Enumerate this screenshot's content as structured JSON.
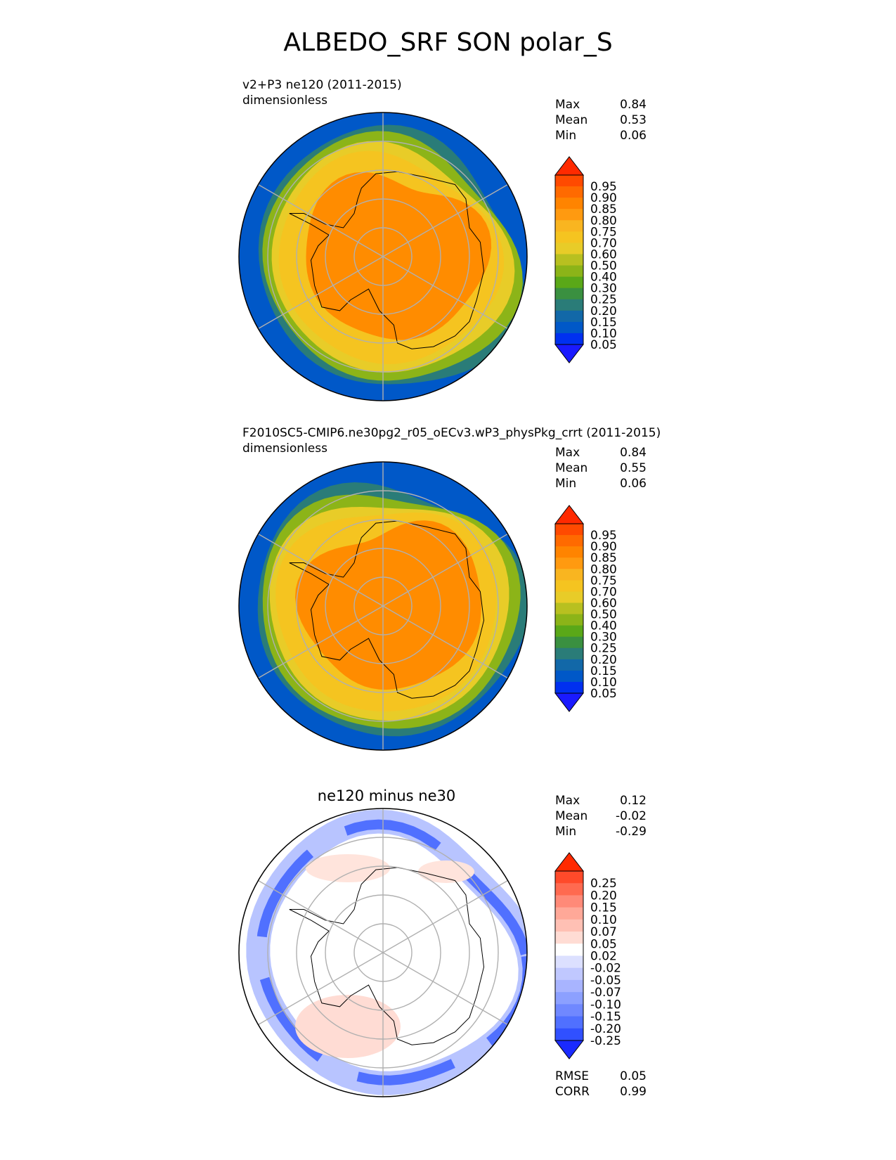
{
  "figure": {
    "title": "ALBEDO_SRF SON polar_S"
  },
  "panels": [
    {
      "title_line1": "v2+P3 ne120 (2011-2015)",
      "title_line2": "dimensionless",
      "stats": [
        {
          "label": "Max",
          "value": "0.84"
        },
        {
          "label": "Mean",
          "value": "0.53"
        },
        {
          "label": "Min",
          "value": "0.06"
        }
      ]
    },
    {
      "title_line1": "F2010SC5-CMIP6.ne30pg2_r05_oECv3.wP3_physPkg_crrt (2011-2015)",
      "title_line2": "dimensionless",
      "stats": [
        {
          "label": "Max",
          "value": "0.84"
        },
        {
          "label": "Mean",
          "value": "0.55"
        },
        {
          "label": "Min",
          "value": "0.06"
        }
      ]
    },
    {
      "title": "ne120 minus ne30",
      "stats": [
        {
          "label": "Max",
          "value": "0.12"
        },
        {
          "label": "Mean",
          "value": "-0.02"
        },
        {
          "label": "Min",
          "value": "-0.29"
        }
      ],
      "extra_stats": [
        {
          "label": "RMSE",
          "value": "0.05"
        },
        {
          "label": "CORR",
          "value": "0.99"
        }
      ]
    }
  ],
  "chart_data": [
    {
      "type": "heatmap",
      "projection": "south-polar-stereographic",
      "title": "v2+P3 ne120 (2011-2015)",
      "units": "dimensionless",
      "colorbar_ticks": [
        "0.95",
        "0.90",
        "0.85",
        "0.80",
        "0.75",
        "0.70",
        "0.60",
        "0.50",
        "0.40",
        "0.30",
        "0.25",
        "0.20",
        "0.15",
        "0.10",
        "0.05"
      ],
      "colorbar_colors": [
        "#ff2a00",
        "#ff4a00",
        "#ff6a00",
        "#ff8400",
        "#ff9a10",
        "#f9b520",
        "#f5c420",
        "#e8cc28",
        "#b8c020",
        "#8cb418",
        "#5aa818",
        "#3a9040",
        "#2a7c78",
        "#1268a8",
        "#0058c8",
        "#0030f0",
        "#1a1aff"
      ],
      "map_regions": [
        {
          "name": "ocean-low",
          "value": 0.05,
          "color": "#0058c8"
        },
        {
          "name": "marginal-ice-green",
          "value": 0.4,
          "color": "#8cb418"
        },
        {
          "name": "sea-ice-yellow",
          "value": 0.7,
          "color": "#f5c420"
        },
        {
          "name": "ice-sheet-orange",
          "value": 0.8,
          "color": "#ff8c00"
        }
      ]
    },
    {
      "type": "heatmap",
      "projection": "south-polar-stereographic",
      "title": "F2010SC5-CMIP6.ne30pg2_r05_oECv3.wP3_physPkg_crrt (2011-2015)",
      "units": "dimensionless",
      "colorbar_ticks": [
        "0.95",
        "0.90",
        "0.85",
        "0.80",
        "0.75",
        "0.70",
        "0.60",
        "0.50",
        "0.40",
        "0.30",
        "0.25",
        "0.20",
        "0.15",
        "0.10",
        "0.05"
      ],
      "colorbar_colors": [
        "#ff2a00",
        "#ff4a00",
        "#ff6a00",
        "#ff8400",
        "#ff9a10",
        "#f9b520",
        "#f5c420",
        "#e8cc28",
        "#b8c020",
        "#8cb418",
        "#5aa818",
        "#3a9040",
        "#2a7c78",
        "#1268a8",
        "#0058c8",
        "#0030f0",
        "#1a1aff"
      ],
      "map_regions": [
        {
          "name": "ocean-low",
          "value": 0.05,
          "color": "#0058c8"
        },
        {
          "name": "marginal-ice-green",
          "value": 0.4,
          "color": "#8cb418"
        },
        {
          "name": "sea-ice-yellow",
          "value": 0.7,
          "color": "#f5c420"
        },
        {
          "name": "ice-sheet-orange",
          "value": 0.8,
          "color": "#ff8c00"
        }
      ]
    },
    {
      "type": "heatmap",
      "projection": "south-polar-stereographic",
      "title": "ne120 minus ne30",
      "colorbar_ticks": [
        "0.25",
        "0.20",
        "0.15",
        "0.10",
        "0.07",
        "0.05",
        "0.02",
        "-0.02",
        "-0.05",
        "-0.07",
        "-0.10",
        "-0.15",
        "-0.20",
        "-0.25"
      ],
      "colorbar_colors": [
        "#ff2a00",
        "#ff4a2a",
        "#ff6a50",
        "#ff8a78",
        "#ffa898",
        "#ffc0b4",
        "#ffdcd4",
        "#ffffff",
        "#dce0ff",
        "#c0c8ff",
        "#a8b4ff",
        "#8ca0ff",
        "#7088ff",
        "#5070ff",
        "#3050ff",
        "#1a2aff"
      ],
      "map_regions": [
        {
          "name": "sea-ice-edge-negative",
          "value": -0.15,
          "color": "#5070ff"
        },
        {
          "name": "near-zero",
          "value": 0.0,
          "color": "#ffffff"
        },
        {
          "name": "weddell-positive",
          "value": 0.05,
          "color": "#ffdcd4"
        }
      ]
    }
  ]
}
